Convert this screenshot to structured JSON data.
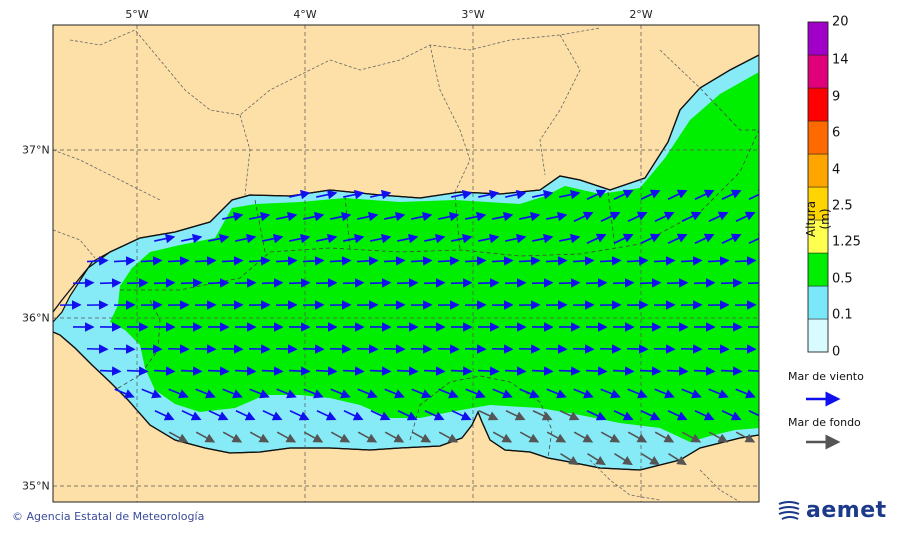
{
  "map": {
    "lon_labels": [
      "5°W",
      "4°W",
      "3°W",
      "2°W"
    ],
    "lat_labels": [
      "37°N",
      "36°N",
      "35°N"
    ]
  },
  "scale": {
    "title": "Altura (m)",
    "levels": [
      "20",
      "14",
      "9",
      "6",
      "4",
      "2.5",
      "1.25",
      "0.5",
      "0.1",
      "0"
    ],
    "colors": [
      "#a000c8",
      "#e0007a",
      "#ff0000",
      "#ff6a00",
      "#ffa500",
      "#ffd400",
      "#ffff50",
      "#00ee00",
      "#7ae8f8",
      "#d8fbff"
    ]
  },
  "legend": {
    "wind_sea": "Mar de viento",
    "swell": "Mar de fondo",
    "wind_color": "#1010ee",
    "swell_color": "#555555"
  },
  "footer": {
    "credit": "© Agencia Estatal de Meteorología",
    "logo": "aemet"
  },
  "colors": {
    "land": "#fde0a8",
    "wave_low": "#86eaf7",
    "wave_mid": "#00ee00"
  }
}
